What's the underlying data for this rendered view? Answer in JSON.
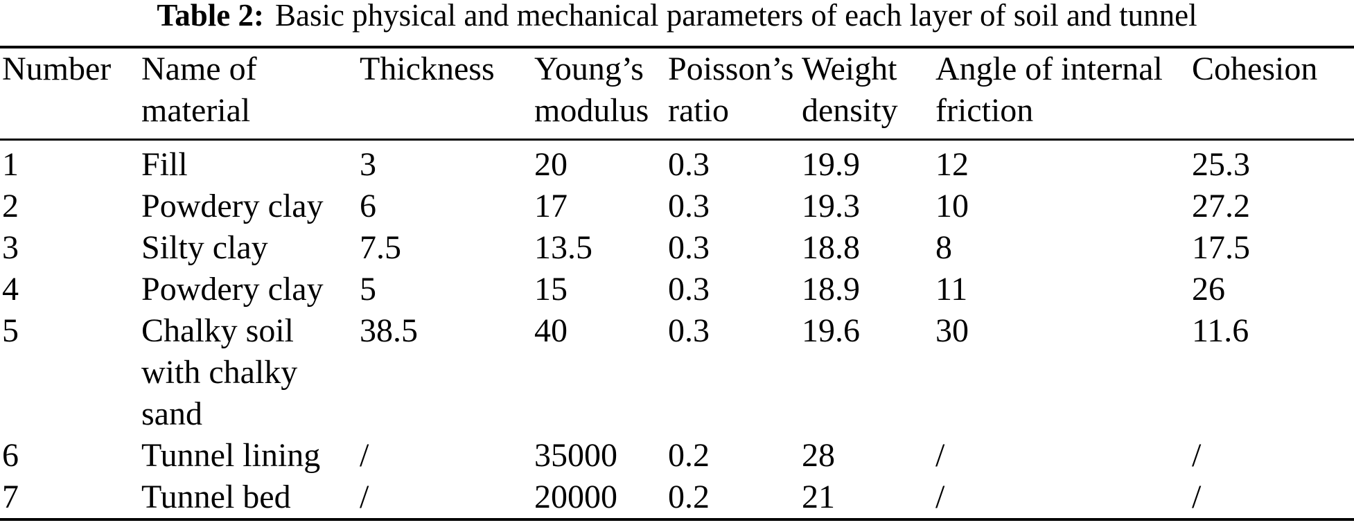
{
  "title": {
    "label": "Table 2:",
    "text": "Basic physical and mechanical parameters of each layer of soil and tunnel"
  },
  "table": {
    "columns": [
      {
        "key": "number",
        "label": "Number"
      },
      {
        "key": "name",
        "label": "Name of material"
      },
      {
        "key": "thickness",
        "label": "Thickness"
      },
      {
        "key": "youngs",
        "label": "Young’s modulus"
      },
      {
        "key": "poissons",
        "label": "Poisson’s ratio"
      },
      {
        "key": "weight",
        "label": "Weight density"
      },
      {
        "key": "angle",
        "label": "Angle of internal friction"
      },
      {
        "key": "cohesion",
        "label": "Cohesion"
      }
    ],
    "rows": [
      [
        "1",
        "Fill",
        "3",
        "20",
        "0.3",
        "19.9",
        "12",
        "25.3"
      ],
      [
        "2",
        "Powdery clay",
        "6",
        "17",
        "0.3",
        "19.3",
        "10",
        "27.2"
      ],
      [
        "3",
        "Silty clay",
        "7.5",
        "13.5",
        "0.3",
        "18.8",
        "8",
        "17.5"
      ],
      [
        "4",
        "Powdery clay",
        "5",
        "15",
        "0.3",
        "18.9",
        "11",
        "26"
      ],
      [
        "5",
        "Chalky soil with chalky sand",
        "38.5",
        "40",
        "0.3",
        "19.6",
        "30",
        "11.6"
      ],
      [
        "6",
        "Tunnel lining",
        "/",
        "35000",
        "0.2",
        "28",
        "/",
        "/"
      ],
      [
        "7",
        "Tunnel bed",
        "/",
        "20000",
        "0.2",
        "21",
        "/",
        "/"
      ]
    ]
  }
}
